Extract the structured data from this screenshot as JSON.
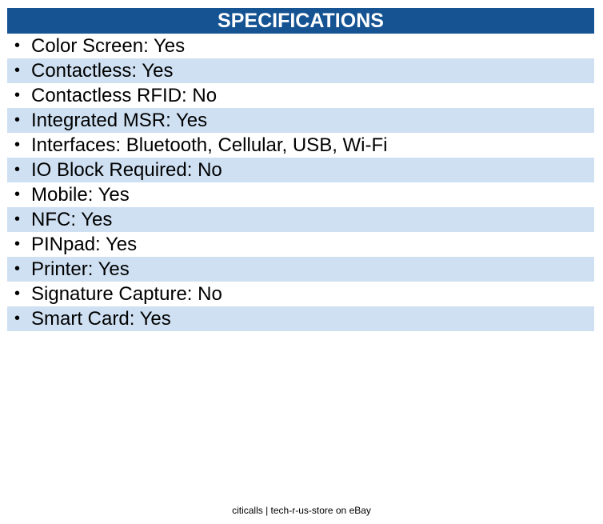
{
  "header": {
    "title": "SPECIFICATIONS"
  },
  "specs": [
    "Color Screen: Yes",
    "Contactless: Yes",
    "Contactless RFID: No",
    "Integrated MSR: Yes",
    "Interfaces: Bluetooth, Cellular, USB, Wi-Fi",
    "IO Block Required: No",
    "Mobile: Yes",
    "NFC: Yes",
    "PINpad: Yes",
    "Printer: Yes",
    "Signature Capture: No",
    "Smart Card: Yes"
  ],
  "footer": {
    "text": "citicalls | tech-r-us-store on eBay"
  }
}
